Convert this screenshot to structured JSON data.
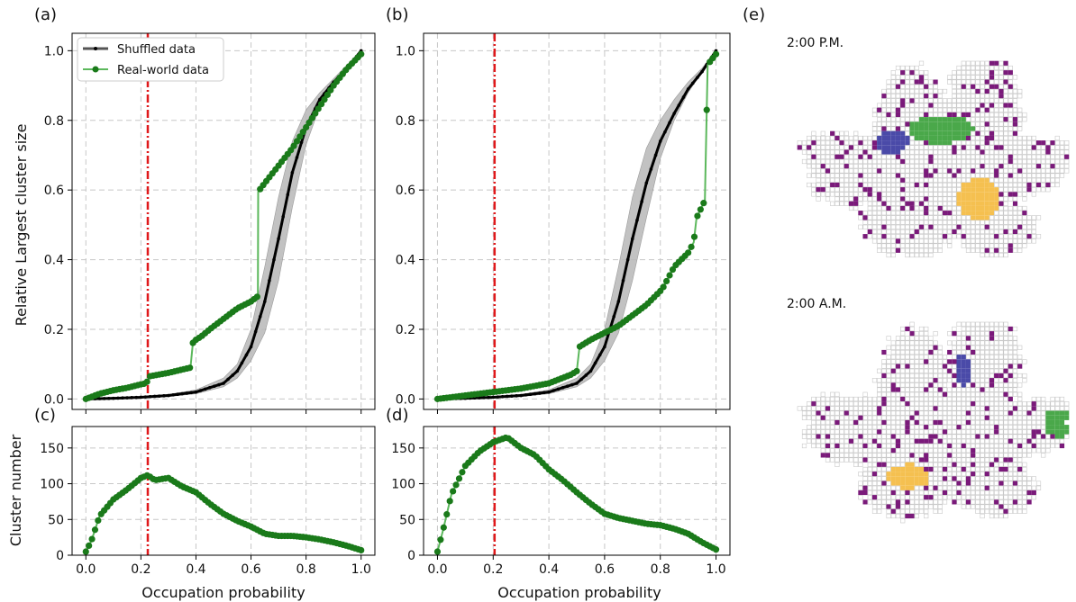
{
  "panels": {
    "a": "(a)",
    "b": "(b)",
    "c": "(c)",
    "d": "(d)",
    "e": "(e)"
  },
  "axes": {
    "xlabel": "Occupation probability",
    "ylabel_top": "Relative Largest cluster size",
    "ylabel_bottom": "Cluster number",
    "x_ticks": [
      "0.0",
      "0.2",
      "0.4",
      "0.6",
      "0.8",
      "1.0"
    ],
    "y_ticks_top": [
      "0.0",
      "0.2",
      "0.4",
      "0.6",
      "0.8",
      "1.0"
    ],
    "y_ticks_bottom": [
      "0",
      "50",
      "100",
      "150"
    ]
  },
  "legend": {
    "shuffled": "Shuffled data",
    "real": "Real-world data"
  },
  "maps": {
    "pm_label": "2:00 P.M.",
    "am_label": "2:00 A.M."
  },
  "colors": {
    "real": "#1a7a1a",
    "shuffled": "#000000",
    "band": "#b8b8b8",
    "threshold": "#e0191b",
    "map_grid": "#c8c8c8",
    "map_purple": "#7a1a7a",
    "map_green": "#4aa84a",
    "map_blue": "#4a4aa8",
    "map_yellow": "#f5c050"
  },
  "chart_data": [
    {
      "id": "a",
      "type": "line",
      "xlim": [
        0,
        1
      ],
      "ylim": [
        0,
        1.05
      ],
      "grid": true,
      "legend_position": "top-left",
      "threshold_x": 0.225,
      "series": [
        {
          "name": "Shuffled data",
          "x": [
            0,
            0.1,
            0.2,
            0.3,
            0.4,
            0.5,
            0.55,
            0.6,
            0.65,
            0.7,
            0.75,
            0.8,
            0.85,
            0.9,
            0.95,
            1.0
          ],
          "y": [
            0,
            0.002,
            0.005,
            0.01,
            0.02,
            0.045,
            0.08,
            0.15,
            0.28,
            0.46,
            0.65,
            0.78,
            0.86,
            0.91,
            0.95,
            1.0
          ],
          "band_lower": [
            0,
            0.001,
            0.003,
            0.007,
            0.015,
            0.035,
            0.06,
            0.11,
            0.19,
            0.34,
            0.55,
            0.73,
            0.84,
            0.9,
            0.95,
            1.0
          ],
          "band_upper": [
            0,
            0.003,
            0.007,
            0.013,
            0.026,
            0.06,
            0.1,
            0.2,
            0.38,
            0.58,
            0.74,
            0.83,
            0.88,
            0.92,
            0.96,
            1.0
          ]
        },
        {
          "name": "Real-world data",
          "x": [
            0,
            0.05,
            0.1,
            0.15,
            0.2,
            0.22,
            0.23,
            0.3,
            0.38,
            0.39,
            0.4,
            0.42,
            0.45,
            0.5,
            0.55,
            0.6,
            0.625,
            0.626,
            0.65,
            0.7,
            0.75,
            0.8,
            0.85,
            0.9,
            0.95,
            1.0
          ],
          "y": [
            0,
            0.015,
            0.025,
            0.032,
            0.042,
            0.045,
            0.065,
            0.075,
            0.09,
            0.17,
            0.17,
            0.18,
            0.2,
            0.23,
            0.26,
            0.28,
            0.295,
            0.595,
            0.62,
            0.67,
            0.72,
            0.78,
            0.84,
            0.9,
            0.95,
            0.99
          ]
        }
      ]
    },
    {
      "id": "b",
      "type": "line",
      "xlim": [
        0,
        1
      ],
      "ylim": [
        0,
        1.05
      ],
      "grid": true,
      "threshold_x": 0.205,
      "series": [
        {
          "name": "Shuffled data",
          "x": [
            0,
            0.1,
            0.2,
            0.3,
            0.4,
            0.5,
            0.55,
            0.6,
            0.65,
            0.7,
            0.75,
            0.8,
            0.85,
            0.9,
            0.95,
            1.0
          ],
          "y": [
            0,
            0.002,
            0.005,
            0.01,
            0.02,
            0.045,
            0.08,
            0.15,
            0.28,
            0.46,
            0.62,
            0.74,
            0.82,
            0.89,
            0.94,
            1.0
          ],
          "band_lower": [
            0,
            0.001,
            0.003,
            0.007,
            0.015,
            0.035,
            0.06,
            0.11,
            0.19,
            0.34,
            0.52,
            0.69,
            0.8,
            0.88,
            0.94,
            1.0
          ],
          "band_upper": [
            0,
            0.003,
            0.007,
            0.013,
            0.026,
            0.06,
            0.1,
            0.2,
            0.38,
            0.58,
            0.72,
            0.8,
            0.86,
            0.91,
            0.95,
            1.0
          ]
        },
        {
          "name": "Real-world data",
          "x": [
            0,
            0.1,
            0.2,
            0.3,
            0.4,
            0.48,
            0.5,
            0.51,
            0.55,
            0.6,
            0.65,
            0.7,
            0.75,
            0.8,
            0.81,
            0.85,
            0.9,
            0.92,
            0.93,
            0.96,
            0.97,
            1.0
          ],
          "y": [
            0,
            0.01,
            0.02,
            0.03,
            0.045,
            0.07,
            0.08,
            0.15,
            0.17,
            0.19,
            0.21,
            0.24,
            0.27,
            0.31,
            0.32,
            0.38,
            0.42,
            0.45,
            0.52,
            0.57,
            0.96,
            0.99
          ]
        }
      ]
    },
    {
      "id": "c",
      "type": "line",
      "xlim": [
        0,
        1
      ],
      "ylim": [
        0,
        180
      ],
      "grid": true,
      "threshold_x": 0.225,
      "series": [
        {
          "name": "Real-world data",
          "x": [
            0,
            0.02,
            0.05,
            0.1,
            0.15,
            0.2,
            0.225,
            0.25,
            0.3,
            0.35,
            0.4,
            0.45,
            0.5,
            0.55,
            0.6,
            0.65,
            0.7,
            0.75,
            0.8,
            0.85,
            0.9,
            0.95,
            1.0
          ],
          "y": [
            5,
            20,
            55,
            78,
            92,
            108,
            112,
            105,
            108,
            96,
            88,
            72,
            58,
            48,
            40,
            30,
            27,
            27,
            25,
            22,
            18,
            13,
            7
          ]
        }
      ]
    },
    {
      "id": "d",
      "type": "line",
      "xlim": [
        0,
        1
      ],
      "ylim": [
        0,
        180
      ],
      "grid": true,
      "threshold_x": 0.205,
      "series": [
        {
          "name": "Real-world data",
          "x": [
            0,
            0.02,
            0.05,
            0.1,
            0.15,
            0.2,
            0.25,
            0.3,
            0.35,
            0.4,
            0.45,
            0.5,
            0.55,
            0.6,
            0.65,
            0.7,
            0.75,
            0.8,
            0.85,
            0.9,
            0.95,
            1.0
          ],
          "y": [
            5,
            35,
            85,
            125,
            145,
            158,
            165,
            150,
            140,
            120,
            105,
            88,
            72,
            58,
            52,
            48,
            44,
            42,
            37,
            30,
            18,
            8
          ]
        }
      ]
    }
  ]
}
